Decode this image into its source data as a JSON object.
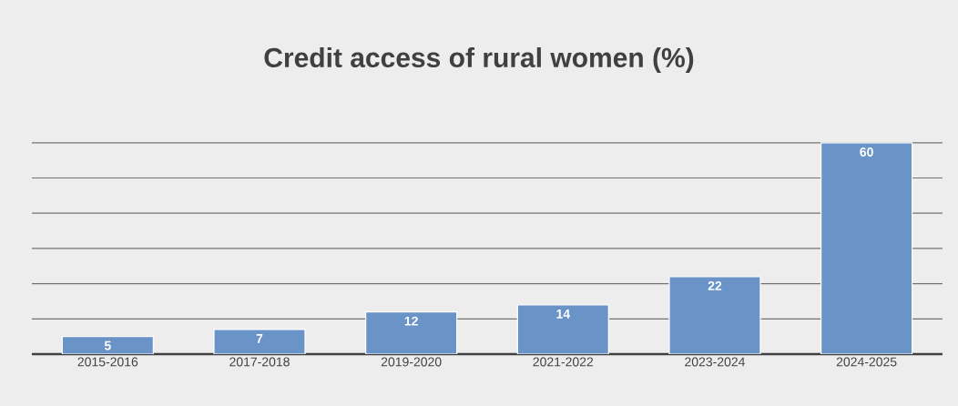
{
  "chart_data": {
    "type": "bar",
    "title": "Credit access of rural women (%)",
    "categories": [
      "2015-2016",
      "2017-2018",
      "2019-2020",
      "2021-2022",
      "2023-2024",
      "2024-2025"
    ],
    "values": [
      5,
      7,
      12,
      14,
      22,
      60
    ],
    "color": "#6a93c8",
    "grid": "y",
    "data_labels": true
  }
}
